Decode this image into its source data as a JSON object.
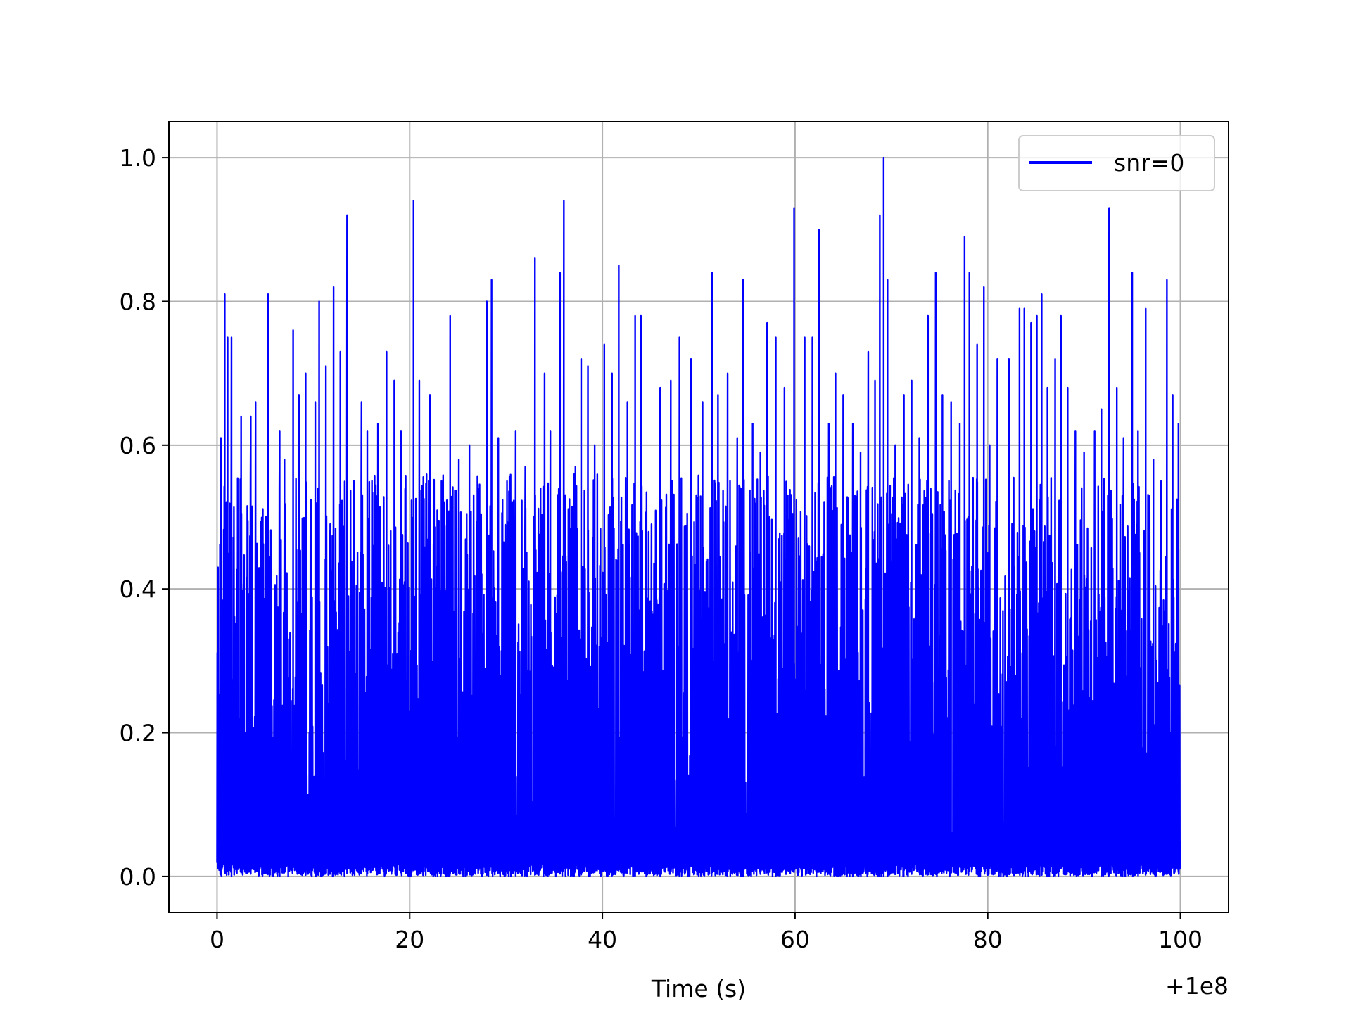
{
  "chart_data": {
    "type": "line",
    "title": "",
    "xlabel": "Time (s)",
    "ylabel": "",
    "x_offset_label": "+1e8",
    "xlim": [
      -5,
      105
    ],
    "ylim": [
      -0.05,
      1.05
    ],
    "xticks": [
      0,
      20,
      40,
      60,
      80,
      100
    ],
    "xtick_labels": [
      "0",
      "20",
      "40",
      "60",
      "80",
      "100"
    ],
    "yticks": [
      0.0,
      0.2,
      0.4,
      0.6,
      0.8,
      1.0
    ],
    "ytick_labels": [
      "0.0",
      "0.2",
      "0.4",
      "0.6",
      "0.8",
      "1.0"
    ],
    "grid": true,
    "legend_position": "top-right",
    "colors": {
      "series": "#0000ff",
      "grid": "#b0b0b0",
      "axes": "#000000"
    },
    "series": [
      {
        "name": "snr=0",
        "x_range": [
          0,
          100
        ],
        "y_range": [
          0.0,
          1.0
        ],
        "peaks": [
          [
            0.1,
            0.43
          ],
          [
            0.4,
            0.61
          ],
          [
            0.8,
            0.81
          ],
          [
            1.1,
            0.75
          ],
          [
            1.5,
            0.75
          ],
          [
            2.5,
            0.64
          ],
          [
            3.5,
            0.64
          ],
          [
            4.0,
            0.66
          ],
          [
            5.3,
            0.81
          ],
          [
            6.5,
            0.62
          ],
          [
            7.0,
            0.58
          ],
          [
            7.9,
            0.76
          ],
          [
            8.5,
            0.67
          ],
          [
            9.2,
            0.7
          ],
          [
            10.2,
            0.66
          ],
          [
            10.6,
            0.8
          ],
          [
            11.3,
            0.71
          ],
          [
            12.1,
            0.82
          ],
          [
            12.8,
            0.73
          ],
          [
            13.5,
            0.92
          ],
          [
            14.2,
            0.55
          ],
          [
            15.0,
            0.66
          ],
          [
            15.6,
            0.62
          ],
          [
            16.7,
            0.63
          ],
          [
            17.6,
            0.73
          ],
          [
            18.4,
            0.69
          ],
          [
            19.1,
            0.62
          ],
          [
            20.4,
            0.94
          ],
          [
            21.0,
            0.69
          ],
          [
            22.1,
            0.67
          ],
          [
            23.3,
            0.55
          ],
          [
            24.2,
            0.78
          ],
          [
            25.1,
            0.58
          ],
          [
            26.2,
            0.6
          ],
          [
            27.1,
            0.54
          ],
          [
            28.0,
            0.8
          ],
          [
            28.5,
            0.83
          ],
          [
            29.2,
            0.61
          ],
          [
            30.1,
            0.55
          ],
          [
            31.0,
            0.62
          ],
          [
            32.0,
            0.57
          ],
          [
            33.0,
            0.86
          ],
          [
            34.0,
            0.7
          ],
          [
            34.6,
            0.62
          ],
          [
            35.6,
            0.84
          ],
          [
            36.0,
            0.94
          ],
          [
            37.2,
            0.57
          ],
          [
            37.8,
            0.72
          ],
          [
            38.5,
            0.71
          ],
          [
            39.2,
            0.6
          ],
          [
            40.2,
            0.74
          ],
          [
            41.0,
            0.7
          ],
          [
            41.7,
            0.85
          ],
          [
            42.6,
            0.66
          ],
          [
            43.4,
            0.78
          ],
          [
            44.0,
            0.78
          ],
          [
            45.1,
            0.49
          ],
          [
            46.0,
            0.68
          ],
          [
            47.1,
            0.69
          ],
          [
            48.0,
            0.75
          ],
          [
            49.2,
            0.72
          ],
          [
            50.4,
            0.66
          ],
          [
            51.4,
            0.84
          ],
          [
            52.0,
            0.67
          ],
          [
            53.0,
            0.7
          ],
          [
            54.0,
            0.61
          ],
          [
            54.6,
            0.83
          ],
          [
            55.6,
            0.63
          ],
          [
            56.4,
            0.59
          ],
          [
            57.1,
            0.77
          ],
          [
            58.0,
            0.75
          ],
          [
            58.9,
            0.68
          ],
          [
            59.9,
            0.93
          ],
          [
            61.0,
            0.75
          ],
          [
            61.8,
            0.75
          ],
          [
            62.5,
            0.9
          ],
          [
            63.5,
            0.63
          ],
          [
            64.2,
            0.7
          ],
          [
            65.0,
            0.67
          ],
          [
            66.0,
            0.63
          ],
          [
            66.8,
            0.59
          ],
          [
            67.6,
            0.73
          ],
          [
            68.3,
            0.69
          ],
          [
            68.8,
            0.92
          ],
          [
            69.2,
            1.0
          ],
          [
            69.6,
            0.83
          ],
          [
            70.4,
            0.6
          ],
          [
            71.3,
            0.67
          ],
          [
            72.1,
            0.69
          ],
          [
            72.9,
            0.61
          ],
          [
            73.8,
            0.78
          ],
          [
            74.6,
            0.84
          ],
          [
            75.3,
            0.67
          ],
          [
            76.2,
            0.66
          ],
          [
            77.1,
            0.63
          ],
          [
            77.6,
            0.89
          ],
          [
            78.1,
            0.84
          ],
          [
            78.9,
            0.74
          ],
          [
            79.6,
            0.82
          ],
          [
            80.2,
            0.6
          ],
          [
            81.0,
            0.72
          ],
          [
            82.2,
            0.72
          ],
          [
            83.3,
            0.79
          ],
          [
            83.8,
            0.79
          ],
          [
            84.5,
            0.77
          ],
          [
            85.1,
            0.78
          ],
          [
            85.6,
            0.81
          ],
          [
            86.2,
            0.68
          ],
          [
            87.0,
            0.72
          ],
          [
            87.6,
            0.78
          ],
          [
            88.3,
            0.68
          ],
          [
            89.1,
            0.62
          ],
          [
            90.0,
            0.59
          ],
          [
            91.1,
            0.62
          ],
          [
            91.8,
            0.65
          ],
          [
            92.6,
            0.93
          ],
          [
            93.4,
            0.68
          ],
          [
            94.1,
            0.61
          ],
          [
            95.0,
            0.84
          ],
          [
            95.6,
            0.62
          ],
          [
            96.4,
            0.79
          ],
          [
            97.2,
            0.58
          ],
          [
            98.0,
            0.55
          ],
          [
            98.6,
            0.83
          ],
          [
            99.2,
            0.67
          ],
          [
            99.8,
            0.63
          ]
        ]
      }
    ]
  }
}
